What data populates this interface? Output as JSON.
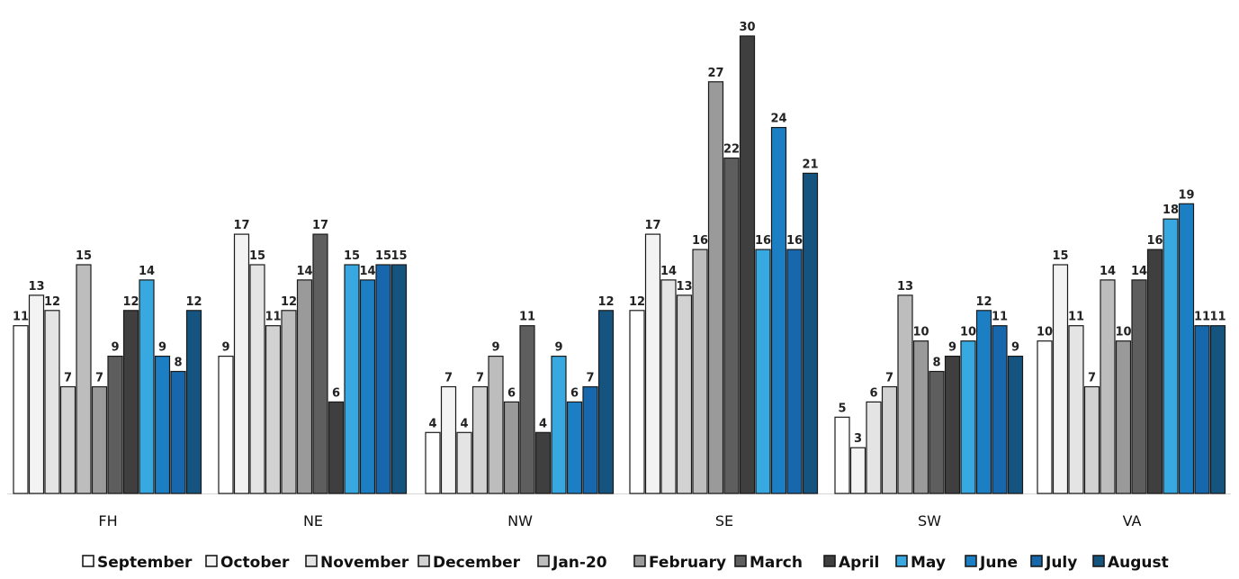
{
  "chart_data": {
    "type": "bar",
    "title": "",
    "xlabel": "",
    "ylabel": "",
    "ylim": [
      0,
      30
    ],
    "grid": false,
    "legend_position": "bottom",
    "categories": [
      "FH",
      "NE",
      "NW",
      "SE",
      "SW",
      "VA"
    ],
    "series": [
      {
        "name": "September",
        "color": "#ffffff",
        "values": [
          11,
          9,
          4,
          12,
          5,
          10
        ]
      },
      {
        "name": "October",
        "color": "#f3f3f3",
        "values": [
          13,
          17,
          7,
          17,
          3,
          15
        ]
      },
      {
        "name": "November",
        "color": "#e4e4e4",
        "values": [
          12,
          15,
          4,
          14,
          6,
          11
        ]
      },
      {
        "name": "December",
        "color": "#d2d2d2",
        "values": [
          7,
          11,
          7,
          13,
          7,
          7
        ]
      },
      {
        "name": "Jan-20",
        "color": "#bdbdbd",
        "values": [
          15,
          12,
          9,
          16,
          13,
          14
        ]
      },
      {
        "name": "February",
        "color": "#9a9a9a",
        "values": [
          7,
          14,
          6,
          27,
          10,
          10
        ]
      },
      {
        "name": "March",
        "color": "#5e5e5e",
        "values": [
          9,
          17,
          11,
          22,
          8,
          14
        ]
      },
      {
        "name": "April",
        "color": "#3f3f3f",
        "values": [
          12,
          6,
          4,
          30,
          9,
          16
        ]
      },
      {
        "name": "May",
        "color": "#38a8e0",
        "values": [
          14,
          15,
          9,
          16,
          10,
          18
        ]
      },
      {
        "name": "June",
        "color": "#1c7fc4",
        "values": [
          9,
          14,
          6,
          24,
          12,
          19
        ]
      },
      {
        "name": "July",
        "color": "#1667ab",
        "values": [
          8,
          15,
          7,
          16,
          11,
          11
        ]
      },
      {
        "name": "August",
        "color": "#14547f",
        "values": [
          12,
          15,
          12,
          21,
          9,
          11
        ]
      }
    ]
  }
}
